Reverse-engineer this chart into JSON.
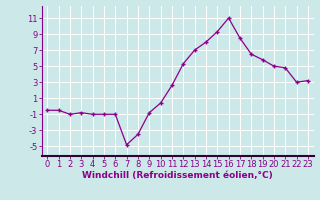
{
  "x": [
    0,
    1,
    2,
    3,
    4,
    5,
    6,
    7,
    8,
    9,
    10,
    11,
    12,
    13,
    14,
    15,
    16,
    17,
    18,
    19,
    20,
    21,
    22,
    23
  ],
  "y": [
    -0.5,
    -0.5,
    -1.0,
    -0.8,
    -1.0,
    -1.0,
    -1.0,
    -4.8,
    -3.5,
    -0.8,
    0.4,
    2.6,
    5.3,
    7.0,
    8.0,
    9.3,
    11.0,
    8.5,
    6.5,
    5.8,
    5.0,
    4.8,
    3.0,
    3.2
  ],
  "line_color": "#8B008B",
  "marker": "+",
  "marker_size": 3,
  "bg_color": "#cce8e8",
  "grid_color": "#ffffff",
  "xlabel": "Windchill (Refroidissement éolien,°C)",
  "xlabel_fontsize": 6.5,
  "yticks": [
    -5,
    -3,
    -1,
    1,
    3,
    5,
    7,
    9,
    11
  ],
  "xlim": [
    -0.5,
    23.5
  ],
  "ylim": [
    -6.2,
    12.5
  ],
  "tick_fontsize": 6.0,
  "spine_color": "#8B008B",
  "bottom_spine_color": "#330033"
}
